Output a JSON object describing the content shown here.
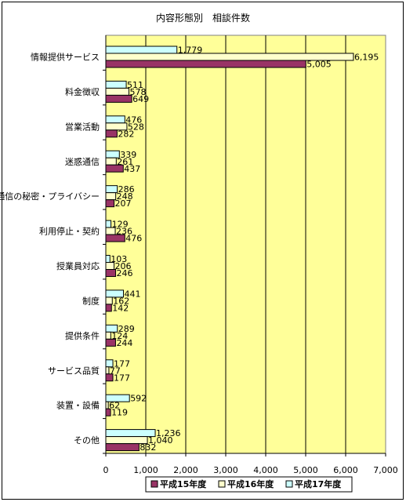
{
  "chart_data": {
    "type": "bar",
    "orientation": "horizontal",
    "title": "内容形態別　相談件数",
    "xlabel": "",
    "ylabel": "",
    "xlim": [
      0,
      7000
    ],
    "x_ticks": [
      "0",
      "1,000",
      "2,000",
      "3,000",
      "4,000",
      "5,000",
      "6,000",
      "7,000"
    ],
    "categories": [
      "情報提供サービス",
      "料金徴収",
      "営業活動",
      "迷惑通信",
      "通信の秘密・プライバシー",
      "利用停止・契約",
      "授業員対応",
      "制度",
      "提供条件",
      "サービス品質",
      "装置・設備",
      "その他"
    ],
    "series": [
      {
        "name": "平成17年度",
        "color": "#ccffff",
        "values": [
          1779,
          511,
          476,
          339,
          286,
          129,
          103,
          441,
          289,
          177,
          592,
          1236
        ],
        "labels": [
          "1,779",
          "511",
          "476",
          "339",
          "286",
          "129",
          "103",
          "441",
          "289",
          "177",
          "592",
          "1,236"
        ]
      },
      {
        "name": "平成16年度",
        "color": "#ffffcc",
        "values": [
          6195,
          578,
          528,
          261,
          248,
          236,
          206,
          162,
          124,
          77,
          62,
          1040
        ],
        "labels": [
          "6,195",
          "578",
          "528",
          "261",
          "248",
          "236",
          "206",
          "162",
          "124",
          "77",
          "62",
          "1,040"
        ]
      },
      {
        "name": "平成15年度",
        "color": "#993366",
        "values": [
          5005,
          649,
          282,
          437,
          207,
          476,
          246,
          142,
          244,
          177,
          119,
          832
        ],
        "labels": [
          "5,005",
          "649",
          "282",
          "437",
          "207",
          "476",
          "246",
          "142",
          "244",
          "177",
          "119",
          "832"
        ]
      }
    ],
    "legend": [
      "平成15年度",
      "平成16年度",
      "平成17年度"
    ],
    "legend_position": "bottom",
    "plot_background": "#ffff99",
    "grid": true
  }
}
